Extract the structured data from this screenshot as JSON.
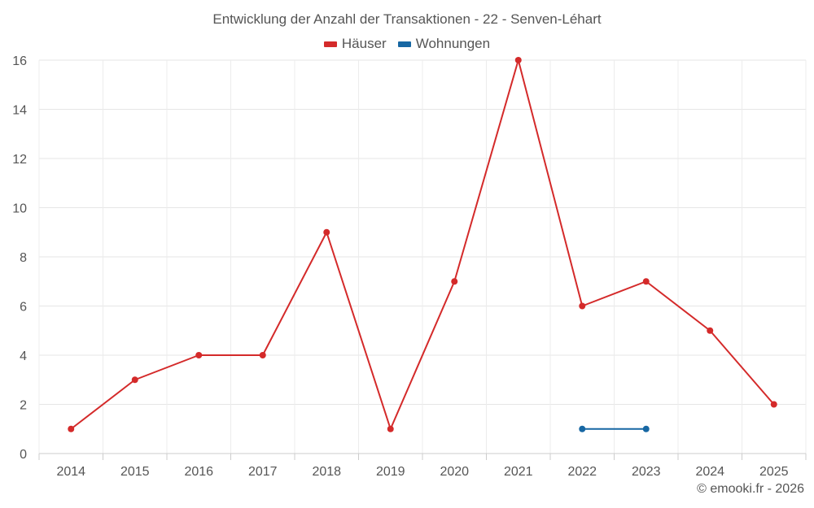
{
  "chart_data": {
    "type": "line",
    "title": "Entwicklung der Anzahl der Transaktionen - 22 - Senven-Léhart",
    "categories": [
      "2014",
      "2015",
      "2016",
      "2017",
      "2018",
      "2019",
      "2020",
      "2021",
      "2022",
      "2023",
      "2024",
      "2025"
    ],
    "series": [
      {
        "name": "Häuser",
        "color": "#d42a2a",
        "values": [
          1,
          3,
          4,
          4,
          9,
          1,
          7,
          16,
          6,
          7,
          5,
          2
        ]
      },
      {
        "name": "Wohnungen",
        "color": "#1767a3",
        "values": [
          null,
          null,
          null,
          null,
          null,
          null,
          null,
          null,
          1,
          1,
          null,
          null
        ]
      }
    ],
    "xlabel": "",
    "ylabel": "",
    "ylim": [
      0,
      16
    ],
    "yticks": [
      0,
      2,
      4,
      6,
      8,
      10,
      12,
      14,
      16
    ],
    "grid": true,
    "legend_position": "top-center"
  },
  "credit": "© emooki.fr - 2026"
}
